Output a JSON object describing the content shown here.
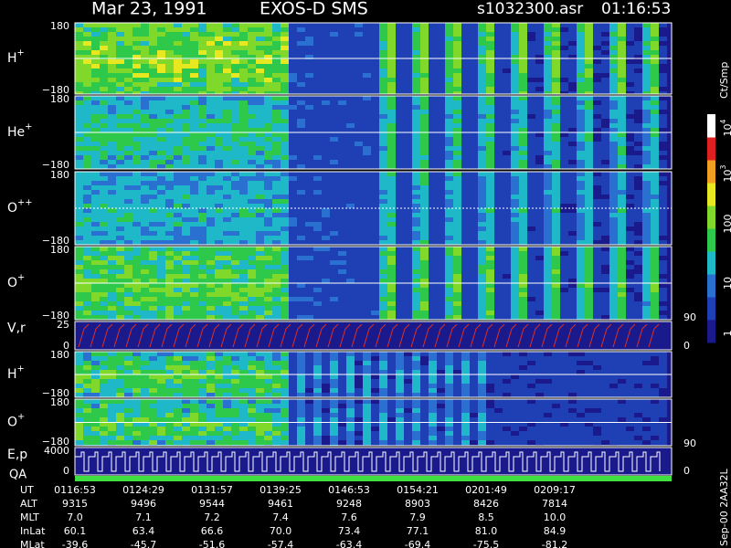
{
  "header": {
    "date": "Mar 23, 1991",
    "instrument": "EXOS-D SMS",
    "file": "s1032300.asr",
    "time": "01:16:53"
  },
  "panels": [
    {
      "base": "H",
      "sup": "+",
      "top": "180",
      "bottom": "−180"
    },
    {
      "base": "He",
      "sup": "+",
      "top": "180",
      "bottom": "−180"
    },
    {
      "base": "O",
      "sup": "++",
      "top": "180",
      "bottom": "−180"
    },
    {
      "base": "O",
      "sup": "+",
      "top": "180",
      "bottom": "−180",
      "right": "90"
    },
    {
      "base": "V,r",
      "top": "25",
      "bottom": "0",
      "right": "0"
    },
    {
      "base": "H",
      "sup": "+",
      "top": "180",
      "bottom": "−180"
    },
    {
      "base": "O",
      "sup": "+",
      "top": "180",
      "bottom": "−180",
      "right": "90"
    },
    {
      "base": "E,p",
      "top": "4000",
      "bottom": "0",
      "right": "0",
      "extra": "QA"
    }
  ],
  "colorbar": {
    "unit": "Ct/Smp",
    "labels": [
      {
        "base": "10",
        "sup": "4"
      },
      {
        "base": "10",
        "sup": "3"
      },
      {
        "base": "100"
      },
      {
        "base": "10"
      },
      {
        "base": "1"
      }
    ]
  },
  "side_note": "Sep-00  2AA32L",
  "footer": [
    {
      "label": "UT",
      "values": [
        "0116:53",
        "0124:29",
        "0131:57",
        "0139:25",
        "0146:53",
        "0154:21",
        "0201:49",
        "0209:17"
      ]
    },
    {
      "label": "ALT",
      "values": [
        "9315",
        "9496",
        "9544",
        "9461",
        "9248",
        "8903",
        "8426",
        "7814"
      ]
    },
    {
      "label": "MLT",
      "values": [
        "7.0",
        "7.1",
        "7.2",
        "7.4",
        "7.6",
        "7.9",
        "8.5",
        "10.0"
      ]
    },
    {
      "label": "InLat",
      "values": [
        "60.1",
        "63.4",
        "66.6",
        "70.0",
        "73.4",
        "77.1",
        "81.0",
        "84.9"
      ]
    },
    {
      "label": "MLat",
      "values": [
        "-39.6",
        "-45.7",
        "-51.6",
        "-57.4",
        "-63.4",
        "-69.4",
        "-75.5",
        "-81.2"
      ]
    }
  ]
}
